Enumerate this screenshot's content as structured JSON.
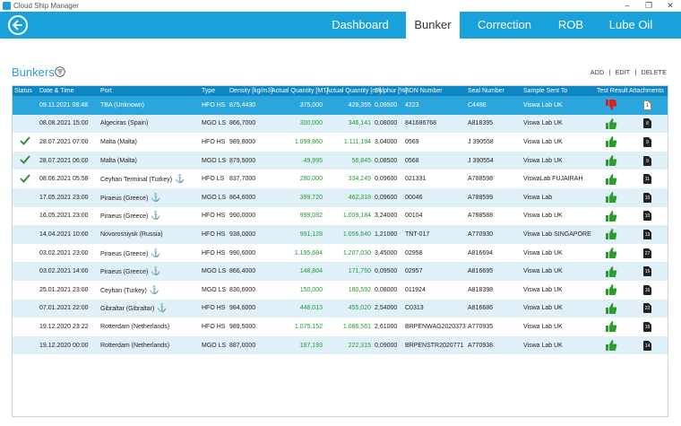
{
  "window": {
    "title": "Cloud Ship Manager"
  },
  "nav": {
    "tabs": [
      {
        "label": "Dashboard",
        "active": false
      },
      {
        "label": "Bunker",
        "active": true
      },
      {
        "label": "Correction",
        "active": false
      },
      {
        "label": "ROB",
        "active": false
      },
      {
        "label": "Lube Oil",
        "active": false
      }
    ]
  },
  "page": {
    "title": "Bunkers",
    "actions": {
      "add": "ADD",
      "sep1": "|",
      "edit": "EDIT",
      "sep2": "|",
      "delete": "DELETE"
    }
  },
  "colors": {
    "accent": "#18a1da",
    "header": "#0f86c4",
    "qty_green": "#1f9b2f",
    "row_alt": "#dff0f9",
    "thumbs_up": "#2e9b2e",
    "thumbs_down": "#d82020"
  },
  "table": {
    "columns": [
      "Status",
      "Date & Time",
      "Port",
      "Type",
      "Density [kg/m3]",
      "Actual Quantity [MT]",
      "Actual Quantity [m³]",
      "Sulphur [%]",
      "BDN Number",
      "Seal Number",
      "Sample Sent To",
      "Test Result",
      "Attachments"
    ],
    "rows": [
      {
        "status": "",
        "date": "09.11.2021 08:48",
        "port": "TBA (Unknown)",
        "anchor": false,
        "type": "HFO HS",
        "density": "875,4430",
        "qty_mt": "375,000",
        "qty_m3": "428,355",
        "sulphur": "0,09500",
        "bdn": "4223",
        "seal": "C4486",
        "sample": "Viswa Lab  UK",
        "result": "down",
        "attachments": "1"
      },
      {
        "status": "",
        "date": "08.08.2021 15:00",
        "port": "Algeciras (Spain)",
        "anchor": false,
        "type": "MGO LS",
        "density": "866,7000",
        "qty_mt": "300,000",
        "qty_m3": "346,141",
        "sulphur": "0,08000",
        "bdn": "841686768",
        "seal": "A818395",
        "sample": "Viswa Lab  UK",
        "result": "up",
        "attachments": "8"
      },
      {
        "status": "check",
        "date": "28.07.2021 07:00",
        "port": "Malta (Malta)",
        "anchor": false,
        "type": "HFO HS",
        "density": "989,8000",
        "qty_mt": "1.099,860",
        "qty_m3": "1.111,194",
        "sulphur": "3,04000",
        "bdn": "0569",
        "seal": "J 390558",
        "sample": "Viswa Lab  UK",
        "result": "up",
        "attachments": "9"
      },
      {
        "status": "check",
        "date": "28.07.2021 06:00",
        "port": "Malta (Malta)",
        "anchor": false,
        "type": "MGO LS",
        "density": "879,5000",
        "qty_mt": "49,995",
        "qty_m3": "56,845",
        "sulphur": "0,08500",
        "bdn": "0568",
        "seal": "J 390554",
        "sample": "Viswa Lab  UK",
        "result": "up",
        "attachments": "9"
      },
      {
        "status": "check",
        "date": "08.06.2021 05:58",
        "port": "Ceyhan Terminal (Turkey)",
        "anchor": true,
        "type": "HFO LS",
        "density": "837,7000",
        "qty_mt": "280,000",
        "qty_m3": "334,249",
        "sulphur": "0,09600",
        "bdn": "021331",
        "seal": "A788598",
        "sample": "ViswaLab FUJAIRAH",
        "result": "up",
        "attachments": "11"
      },
      {
        "status": "",
        "date": "17.05.2021 23:00",
        "port": "Piraeus (Greece)",
        "anchor": true,
        "type": "MGO LS",
        "density": "864,6000",
        "qty_mt": "399,720",
        "qty_m3": "462,318",
        "sulphur": "0,09600",
        "bdn": "00046",
        "seal": "A788599",
        "sample": "Viswa Lab",
        "result": "up",
        "attachments": "10"
      },
      {
        "status": "",
        "date": "16.05.2021 23:00",
        "port": "Piraeus (Greece)",
        "anchor": true,
        "type": "HFO HS",
        "density": "990,0000",
        "qty_mt": "999,092",
        "qty_m3": "1.009,184",
        "sulphur": "3,24000",
        "bdn": "00104",
        "seal": "A788588",
        "sample": "Viswa Lab  UK",
        "result": "up",
        "attachments": "10"
      },
      {
        "status": "",
        "date": "14.04.2021 10:00",
        "port": "Novorossiysk (Russia)",
        "anchor": false,
        "type": "HFO HS",
        "density": "938,0000",
        "qty_mt": "991,128",
        "qty_m3": "1.056,640",
        "sulphur": "1,21000",
        "bdn": "TNT-017",
        "seal": "A770930",
        "sample": "Viswa Lab SINGAPORE",
        "result": "up",
        "attachments": "13"
      },
      {
        "status": "",
        "date": "03.02.2021 23:00",
        "port": "Piraeus (Greece)",
        "anchor": true,
        "type": "HFO HS",
        "density": "990,6000",
        "qty_mt": "1.195,684",
        "qty_m3": "1.207,030",
        "sulphur": "3,45000",
        "bdn": "02958",
        "seal": "A816694",
        "sample": "Viswa Lab  UK",
        "result": "up",
        "attachments": "27"
      },
      {
        "status": "",
        "date": "03.02.2021 14:00",
        "port": "Piraeus (Greece)",
        "anchor": true,
        "type": "MGO LS",
        "density": "866,4000",
        "qty_mt": "148,804",
        "qty_m3": "171,750",
        "sulphur": "0,09500",
        "bdn": "02957",
        "seal": "A816695",
        "sample": "Viswa Lab  UK",
        "result": "up",
        "attachments": "15"
      },
      {
        "status": "",
        "date": "25.01.2021 23:00",
        "port": "Ceyhan (Turkey)",
        "anchor": true,
        "type": "MGO LS",
        "density": "830,6000",
        "qty_mt": "150,000",
        "qty_m3": "180,592",
        "sulphur": "0,08000",
        "bdn": "011924",
        "seal": "A818398",
        "sample": "Viswa Lab  UK",
        "result": "up",
        "attachments": "16"
      },
      {
        "status": "",
        "date": "07.01.2021 22:00",
        "port": "Gibraltar (Gibraltar)",
        "anchor": true,
        "type": "HFO HS",
        "density": "984,6000",
        "qty_mt": "448,013",
        "qty_m3": "455,020",
        "sulphur": "2,54000",
        "bdn": "C0313",
        "seal": "A816686",
        "sample": "Viswa Lab  UK",
        "result": "up",
        "attachments": "22"
      },
      {
        "status": "",
        "date": "19.12.2020 23:22",
        "port": "Rotterdam (Netherlands)",
        "anchor": false,
        "type": "HFO HS",
        "density": "989,5000",
        "qty_mt": "1.075,152",
        "qty_m3": "1.086,561",
        "sulphur": "2,61000",
        "bdn": "BRPENWAG2020373",
        "seal": "A770935",
        "sample": "Viswa Lab  UK",
        "result": "up",
        "attachments": "19"
      },
      {
        "status": "",
        "date": "19.12.2020 00:00",
        "port": "Rotterdam (Netherlands)",
        "anchor": false,
        "type": "MGO LS",
        "density": "887,0000",
        "qty_mt": "197,193",
        "qty_m3": "222,315",
        "sulphur": "0,09000",
        "bdn": "BRPENSTR2020771",
        "seal": "A770938",
        "sample": "Viswa Lab  UK",
        "result": "up",
        "attachments": "14"
      }
    ]
  }
}
